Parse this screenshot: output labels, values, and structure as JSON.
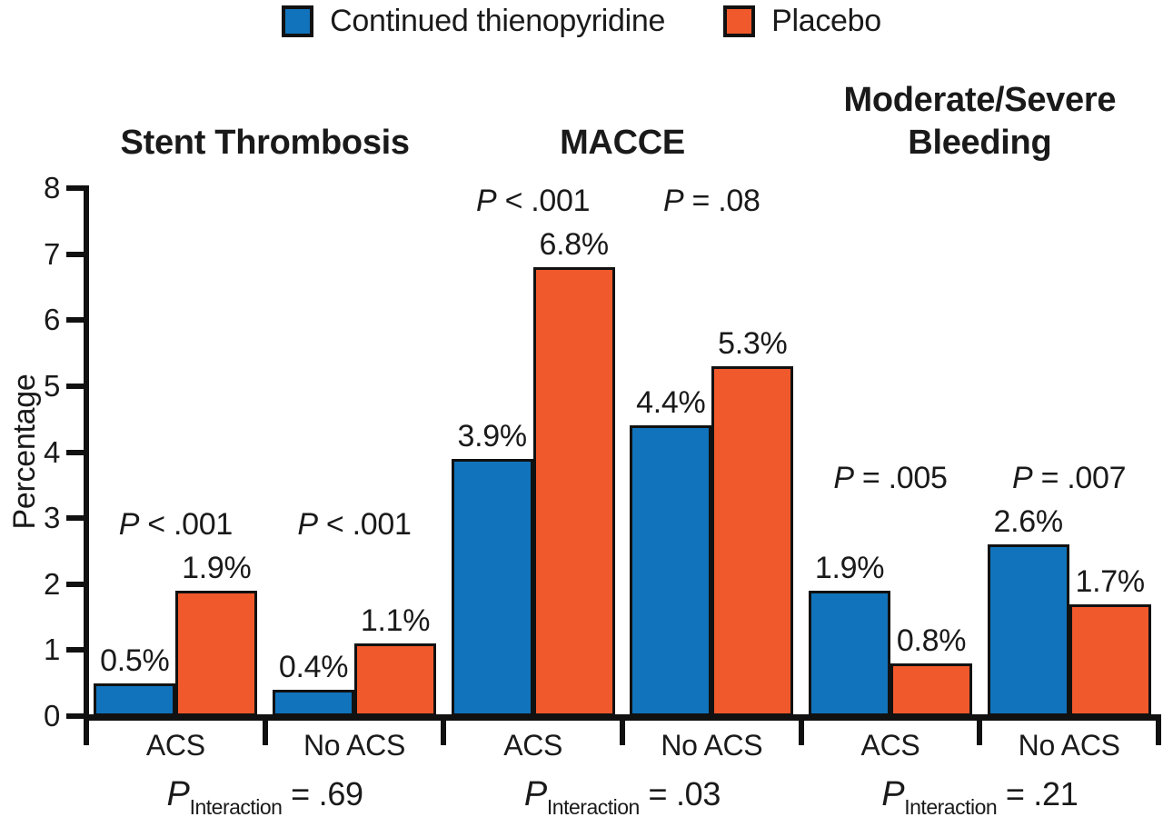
{
  "figure": {
    "background": "#ffffff",
    "text_color": "#1a1a1a"
  },
  "chart_data": {
    "type": "bar",
    "ylabel": "Percentage",
    "ylim": [
      0,
      8
    ],
    "yticks": [
      0,
      1,
      2,
      3,
      4,
      5,
      6,
      7,
      8
    ],
    "grid": "off",
    "legend_position": "top-center",
    "series": [
      {
        "name": "Continued thienopyridine",
        "color": "#1173BB"
      },
      {
        "name": "Placebo",
        "color": "#F0592B"
      }
    ],
    "groups": [
      {
        "title": "Stent Thrombosis",
        "title_lines": [
          "Stent Thrombosis"
        ],
        "p_interaction": {
          "symbol": "P",
          "sub": "Interaction",
          "rest": "= .69"
        },
        "pairs": [
          {
            "category": "ACS",
            "p": {
              "symbol": "P",
              "rest": "< .001"
            },
            "values": [
              0.5,
              1.9
            ],
            "value_labels": [
              "0.5%",
              "1.9%"
            ]
          },
          {
            "category": "No ACS",
            "p": {
              "symbol": "P",
              "rest": "< .001"
            },
            "values": [
              0.4,
              1.1
            ],
            "value_labels": [
              "0.4%",
              "1.1%"
            ]
          }
        ]
      },
      {
        "title": "MACCE",
        "title_lines": [
          "MACCE"
        ],
        "p_interaction": {
          "symbol": "P",
          "sub": "Interaction",
          "rest": "= .03"
        },
        "pairs": [
          {
            "category": "ACS",
            "p": {
              "symbol": "P",
              "rest": "< .001"
            },
            "values": [
              3.9,
              6.8
            ],
            "value_labels": [
              "3.9%",
              "6.8%"
            ]
          },
          {
            "category": "No ACS",
            "p": {
              "symbol": "P",
              "rest": "= .08"
            },
            "values": [
              4.4,
              5.3
            ],
            "value_labels": [
              "4.4%",
              "5.3%"
            ]
          }
        ]
      },
      {
        "title": "Moderate/Severe Bleeding",
        "title_lines": [
          "Moderate/Severe",
          "Bleeding"
        ],
        "p_interaction": {
          "symbol": "P",
          "sub": "Interaction",
          "rest": "= .21"
        },
        "pairs": [
          {
            "category": "ACS",
            "p": {
              "symbol": "P",
              "rest": "= .005"
            },
            "values": [
              1.9,
              0.8
            ],
            "value_labels": [
              "1.9%",
              "0.8%"
            ]
          },
          {
            "category": "No ACS",
            "p": {
              "symbol": "P",
              "rest": "= .007"
            },
            "values": [
              2.6,
              1.7
            ],
            "value_labels": [
              "2.6%",
              "1.7%"
            ]
          }
        ]
      }
    ]
  }
}
